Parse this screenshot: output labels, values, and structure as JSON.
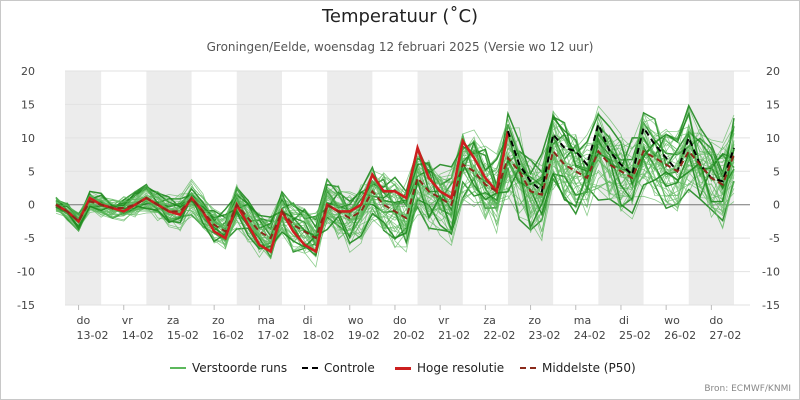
{
  "page": {
    "title": "Temperatuur (˚C)",
    "subtitle": "Groningen/Eelde, woensdag 12 februari 2025 (Versie wo 12 uur)",
    "credit": "Bron: ECMWF/KNMI"
  },
  "colors": {
    "ensemble": "#5cb85c",
    "ensemble_dark": "#1f8a1f",
    "control": "#000000",
    "hires": "#cc1f1f",
    "median": "#8b2a1a",
    "band": "#ececec",
    "axis_text": "#444444"
  },
  "legend": [
    {
      "label": "Verstoorde runs",
      "style": "ensemble"
    },
    {
      "label": "Controle",
      "style": "control"
    },
    {
      "label": "Hoge resolutie",
      "style": "hires"
    },
    {
      "label": "Middelste (P50)",
      "style": "median"
    }
  ],
  "chart_data": {
    "type": "line",
    "title": "Temperatuur (˚C)",
    "ylim": [
      -15,
      20
    ],
    "yticks": [
      -15,
      -10,
      -5,
      0,
      5,
      10,
      15,
      20
    ],
    "xlim": [
      0,
      15.1
    ],
    "x_units": "days since 12-02 00:00",
    "day_labels": [
      {
        "x": 1,
        "day": "do",
        "date": "13-02"
      },
      {
        "x": 2,
        "day": "vr",
        "date": "14-02"
      },
      {
        "x": 3,
        "day": "za",
        "date": "15-02"
      },
      {
        "x": 4,
        "day": "zo",
        "date": "16-02"
      },
      {
        "x": 5,
        "day": "ma",
        "date": "17-02"
      },
      {
        "x": 6,
        "day": "di",
        "date": "18-02"
      },
      {
        "x": 7,
        "day": "wo",
        "date": "19-02"
      },
      {
        "x": 8,
        "day": "do",
        "date": "20-02"
      },
      {
        "x": 9,
        "day": "vr",
        "date": "21-02"
      },
      {
        "x": 10,
        "day": "za",
        "date": "22-02"
      },
      {
        "x": 11,
        "day": "zo",
        "date": "23-02"
      },
      {
        "x": 12,
        "day": "ma",
        "date": "24-02"
      },
      {
        "x": 13,
        "day": "di",
        "date": "25-02"
      },
      {
        "x": 14,
        "day": "wo",
        "date": "26-02"
      },
      {
        "x": 15,
        "day": "do",
        "date": "27-02"
      }
    ],
    "series": [
      {
        "name": "Hoge resolutie",
        "style": "hires",
        "points": [
          [
            0.5,
            0
          ],
          [
            0.75,
            -1
          ],
          [
            1,
            -2.5
          ],
          [
            1.25,
            1
          ],
          [
            1.5,
            0
          ],
          [
            1.75,
            -0.5
          ],
          [
            2,
            -1
          ],
          [
            2.25,
            0
          ],
          [
            2.5,
            1
          ],
          [
            2.75,
            0
          ],
          [
            3,
            -1
          ],
          [
            3.25,
            -1.5
          ],
          [
            3.5,
            1
          ],
          [
            3.75,
            -1
          ],
          [
            4,
            -4
          ],
          [
            4.25,
            -5
          ],
          [
            4.5,
            0
          ],
          [
            4.75,
            -3
          ],
          [
            5,
            -6
          ],
          [
            5.25,
            -7
          ],
          [
            5.5,
            -1
          ],
          [
            5.75,
            -4
          ],
          [
            6,
            -6
          ],
          [
            6.25,
            -7
          ],
          [
            6.5,
            0
          ],
          [
            6.75,
            -1
          ],
          [
            7,
            -1
          ],
          [
            7.25,
            0
          ],
          [
            7.5,
            4.5
          ],
          [
            7.75,
            2
          ],
          [
            8,
            2
          ],
          [
            8.25,
            1
          ],
          [
            8.5,
            8.5
          ],
          [
            8.75,
            4
          ],
          [
            9,
            2
          ],
          [
            9.25,
            1
          ],
          [
            9.5,
            9.5
          ],
          [
            9.75,
            7
          ],
          [
            10,
            4
          ],
          [
            10.25,
            2
          ],
          [
            10.5,
            11
          ]
        ]
      },
      {
        "name": "Controle",
        "style": "control",
        "points": [
          [
            10.5,
            11
          ],
          [
            10.75,
            6
          ],
          [
            11,
            3.5
          ],
          [
            11.25,
            2
          ],
          [
            11.5,
            10.5
          ],
          [
            11.75,
            8.5
          ],
          [
            12,
            8
          ],
          [
            12.25,
            6
          ],
          [
            12.5,
            12
          ],
          [
            12.75,
            8
          ],
          [
            13,
            6
          ],
          [
            13.25,
            4.5
          ],
          [
            13.5,
            11.5
          ],
          [
            13.75,
            9
          ],
          [
            14,
            7
          ],
          [
            14.25,
            5
          ],
          [
            14.5,
            10
          ],
          [
            14.75,
            6
          ],
          [
            15,
            4
          ],
          [
            15.25,
            3.5
          ],
          [
            15.5,
            8.5
          ]
        ]
      },
      {
        "name": "Middelste (P50)",
        "style": "median",
        "points": [
          [
            0.5,
            0
          ],
          [
            0.75,
            -1
          ],
          [
            1,
            -2.5
          ],
          [
            1.25,
            0.5
          ],
          [
            1.5,
            0
          ],
          [
            1.75,
            -0.5
          ],
          [
            2,
            -0.5
          ],
          [
            2.25,
            0
          ],
          [
            2.5,
            1
          ],
          [
            2.75,
            0
          ],
          [
            3,
            -1
          ],
          [
            3.25,
            -1
          ],
          [
            3.5,
            1
          ],
          [
            3.75,
            -1
          ],
          [
            4,
            -3
          ],
          [
            4.25,
            -4
          ],
          [
            4.5,
            0
          ],
          [
            4.75,
            -2
          ],
          [
            5,
            -4
          ],
          [
            5.25,
            -5
          ],
          [
            5.5,
            -1
          ],
          [
            5.75,
            -3
          ],
          [
            6,
            -4
          ],
          [
            6.25,
            -5
          ],
          [
            6.5,
            0
          ],
          [
            6.75,
            -1
          ],
          [
            7,
            -2
          ],
          [
            7.25,
            -1
          ],
          [
            7.5,
            2
          ],
          [
            7.75,
            0
          ],
          [
            8,
            -1
          ],
          [
            8.25,
            -2
          ],
          [
            8.5,
            4
          ],
          [
            8.75,
            2
          ],
          [
            9,
            1
          ],
          [
            9.25,
            0
          ],
          [
            9.5,
            6
          ],
          [
            9.75,
            5
          ],
          [
            10,
            3
          ],
          [
            10.25,
            2
          ],
          [
            10.5,
            7
          ],
          [
            10.75,
            5
          ],
          [
            11,
            2
          ],
          [
            11.25,
            1.5
          ],
          [
            11.5,
            8
          ],
          [
            11.75,
            6
          ],
          [
            12,
            5
          ],
          [
            12.25,
            4
          ],
          [
            12.5,
            8
          ],
          [
            12.75,
            6
          ],
          [
            13,
            5
          ],
          [
            13.25,
            4
          ],
          [
            13.5,
            8
          ],
          [
            13.75,
            7
          ],
          [
            14,
            6
          ],
          [
            14.25,
            5
          ],
          [
            14.5,
            8
          ],
          [
            14.75,
            6
          ],
          [
            15,
            4
          ],
          [
            15.25,
            3
          ],
          [
            15.5,
            7.5
          ]
        ]
      }
    ]
  }
}
